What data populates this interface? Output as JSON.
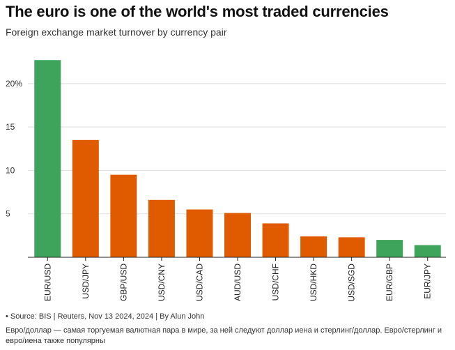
{
  "header": {
    "title": "The euro is one of the world's most traded currencies",
    "subtitle": "Foreign exchange market turnover by currency pair"
  },
  "footer": {
    "source": "• Source: BIS | Reuters, Nov 13 2024, 2024 | By Alun John",
    "caption": "Евро/доллар — самая торгуемая валютная пара в мире, за ней следуют доллар иена и стерлинг/доллар. Евро/стерлинг и евро/иена также популярны"
  },
  "colors": {
    "euro": "#3fa45b",
    "other": "#e05a00",
    "grid": "#dddddd",
    "axis": "#222222"
  },
  "chart_data": {
    "type": "bar",
    "categories": [
      "EUR/USD",
      "USD/JPY",
      "GBP/USD",
      "USD/CNY",
      "USD/CAD",
      "AUD/USD",
      "USD/CHF",
      "USD/HKD",
      "USD/SGD",
      "EUR/GBP",
      "EUR/JPY"
    ],
    "values": [
      22.7,
      13.5,
      9.5,
      6.6,
      5.5,
      5.1,
      3.9,
      2.4,
      2.3,
      2.0,
      1.4
    ],
    "highlight": [
      "euro",
      "other",
      "other",
      "other",
      "other",
      "other",
      "other",
      "other",
      "other",
      "euro",
      "euro"
    ],
    "ylim": [
      0,
      24
    ],
    "yticks": [
      5,
      10,
      15,
      20
    ],
    "ytick_labels": [
      "5",
      "10",
      "15",
      "20%"
    ],
    "grid": true,
    "xlabel": "",
    "ylabel": ""
  }
}
